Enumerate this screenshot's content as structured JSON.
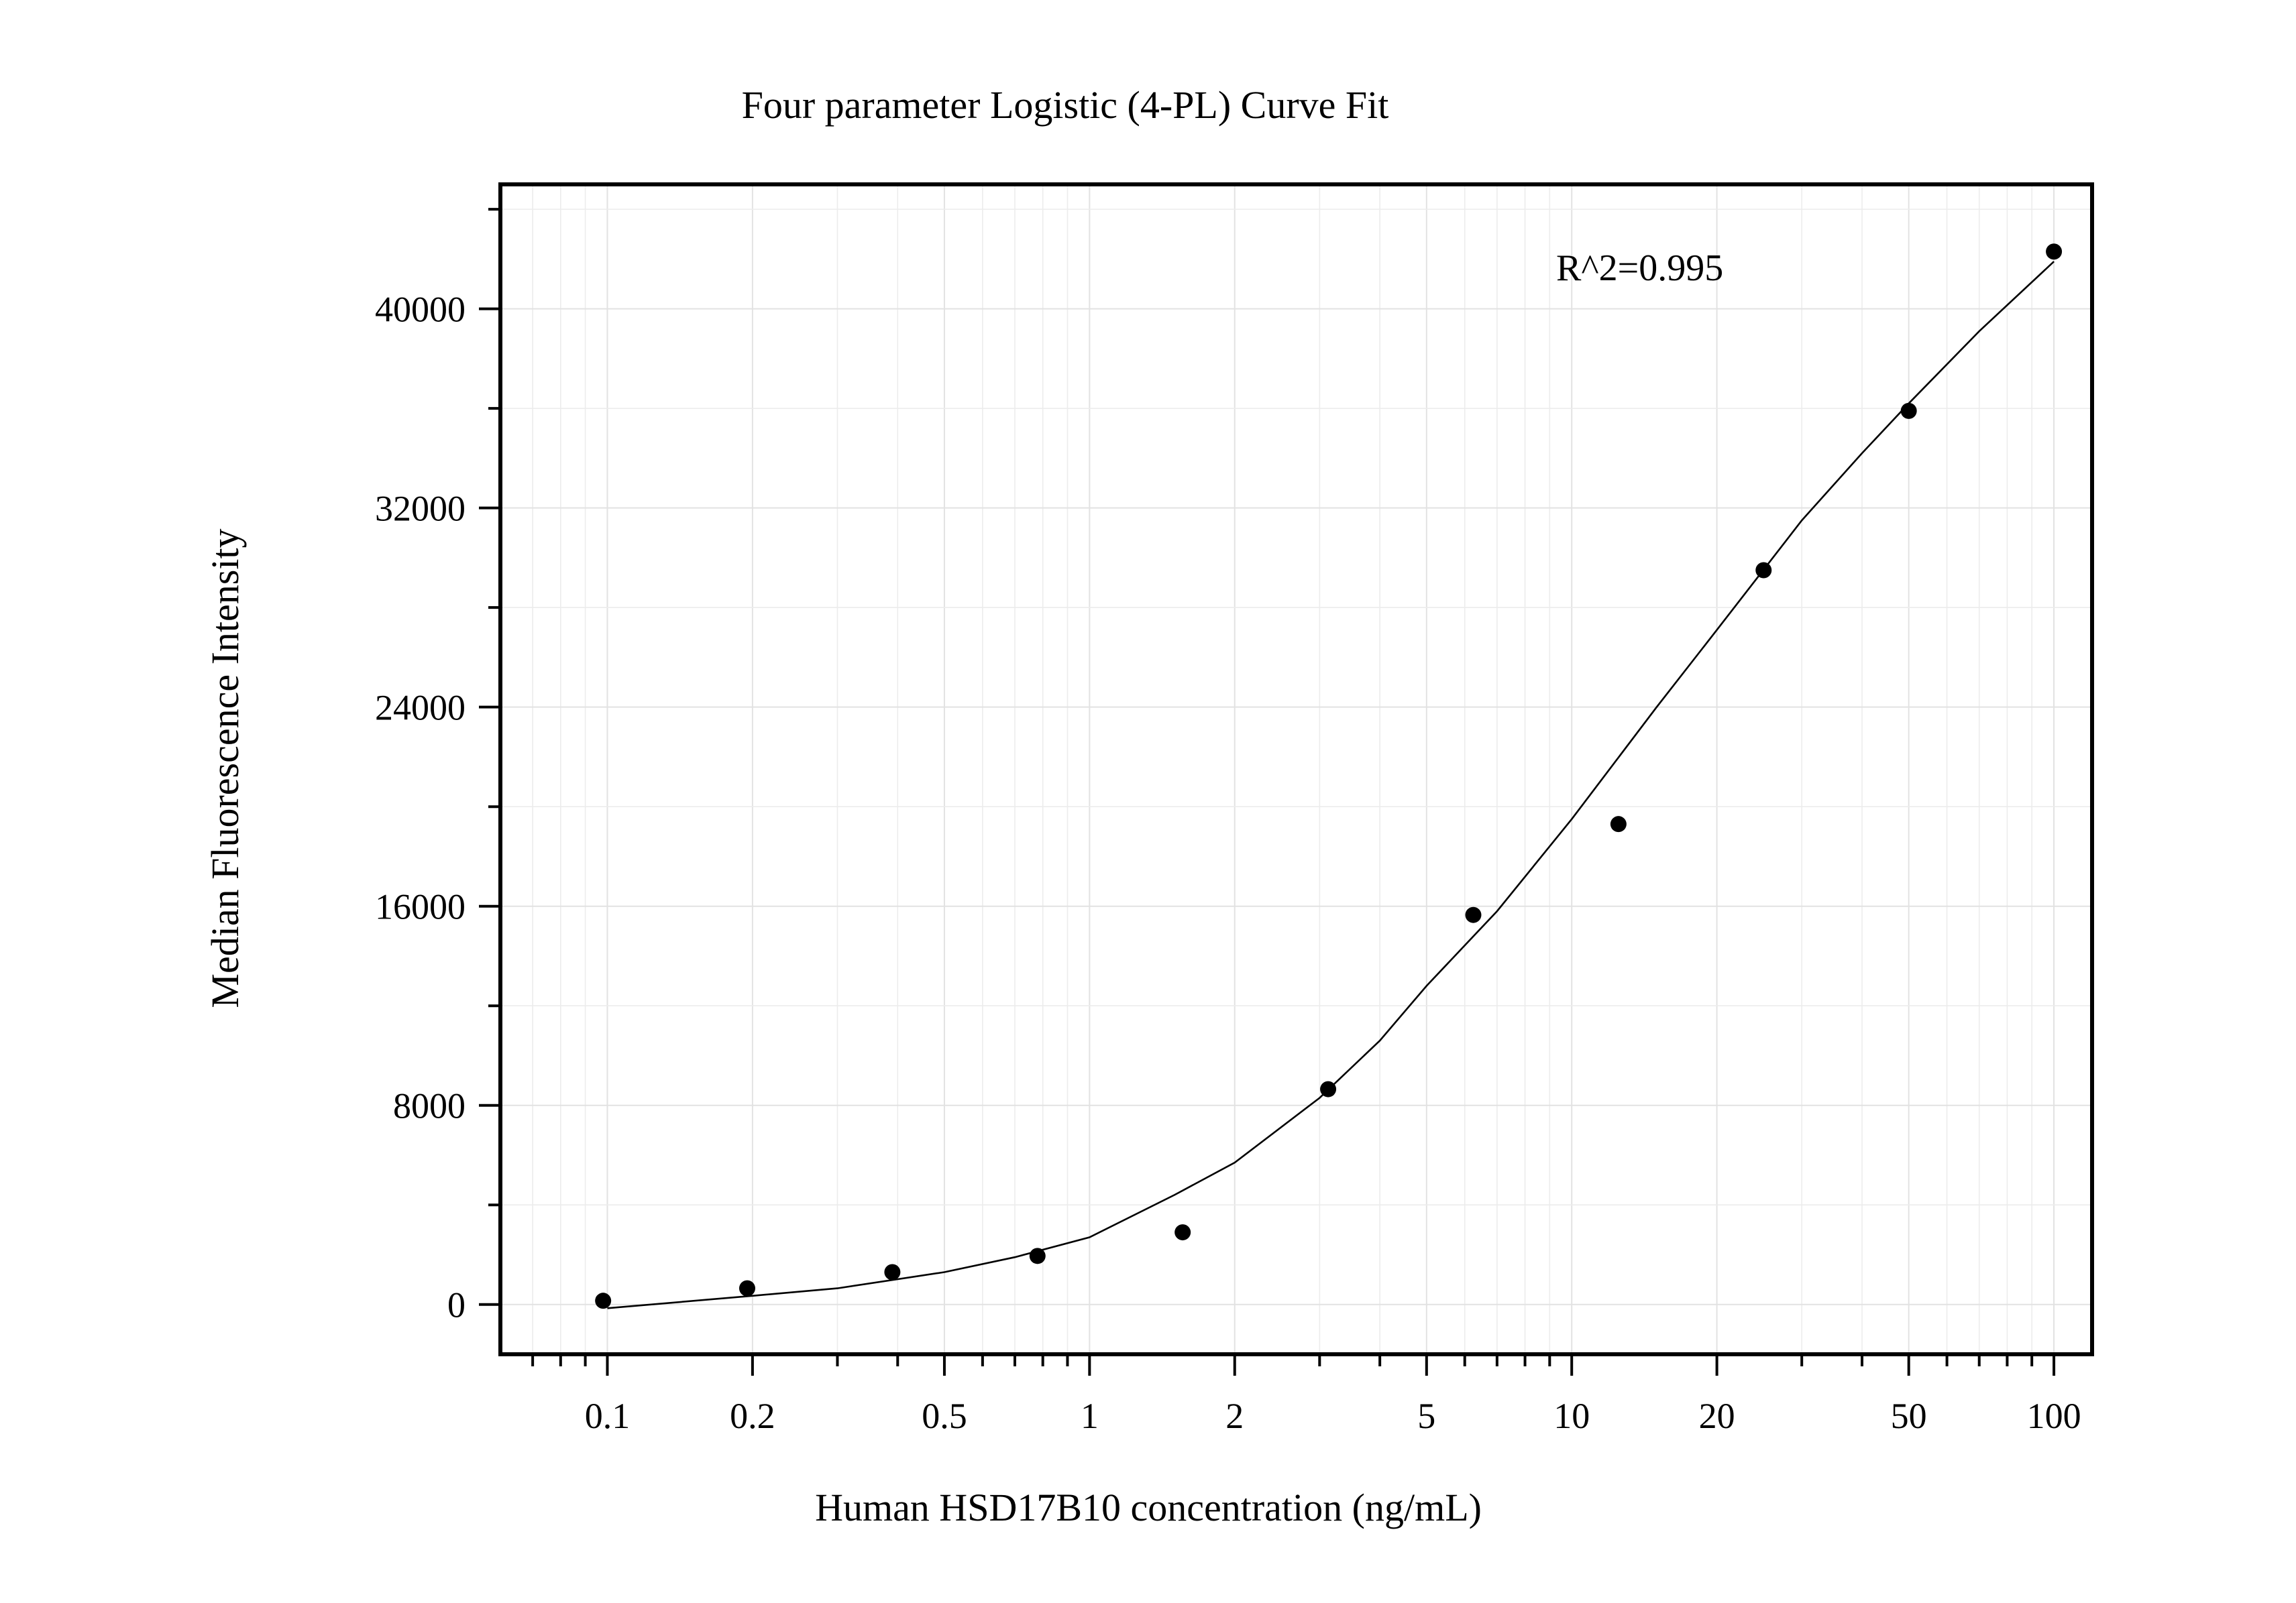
{
  "chart_data": {
    "type": "scatter",
    "title": "Four parameter Logistic (4-PL) Curve Fit",
    "xlabel": "Human HSD17B10 concentration (ng/mL)",
    "ylabel": "Median Fluorescence Intensity",
    "x_scale": "log",
    "xlim": [
      0.06,
      120
    ],
    "ylim": [
      -2000,
      45000
    ],
    "x_ticks": [
      {
        "value": 0.1,
        "label": "0.1"
      },
      {
        "value": 0.2,
        "label": "0.2"
      },
      {
        "value": 0.5,
        "label": "0.5"
      },
      {
        "value": 1,
        "label": "1"
      },
      {
        "value": 2,
        "label": "2"
      },
      {
        "value": 5,
        "label": "5"
      },
      {
        "value": 10,
        "label": "10"
      },
      {
        "value": 20,
        "label": "20"
      },
      {
        "value": 50,
        "label": "50"
      },
      {
        "value": 100,
        "label": "100"
      }
    ],
    "y_ticks": [
      {
        "value": 0,
        "label": "0"
      },
      {
        "value": 8000,
        "label": "8000"
      },
      {
        "value": 16000,
        "label": "16000"
      },
      {
        "value": 24000,
        "label": "24000"
      },
      {
        "value": 32000,
        "label": "32000"
      },
      {
        "value": 40000,
        "label": "40000"
      }
    ],
    "grid": true,
    "annotation": "R^2=0.995",
    "points": {
      "x": [
        0.098,
        0.195,
        0.39,
        0.78,
        1.56,
        3.125,
        6.25,
        12.5,
        25,
        50,
        100
      ],
      "y": [
        150,
        650,
        1300,
        1950,
        2900,
        8650,
        15650,
        19300,
        29500,
        35900,
        42300
      ]
    },
    "fit": {
      "model": "4PL",
      "x": [
        0.1,
        0.2,
        0.3,
        0.5,
        0.7,
        1,
        1.5,
        2,
        3,
        4,
        5,
        7,
        10,
        15,
        20,
        30,
        40,
        50,
        70,
        100
      ],
      "y": [
        -150,
        350,
        650,
        1300,
        1900,
        2700,
        4400,
        5700,
        8300,
        10600,
        12800,
        15800,
        19500,
        24000,
        27100,
        31500,
        34200,
        36200,
        39100,
        41900
      ]
    }
  }
}
